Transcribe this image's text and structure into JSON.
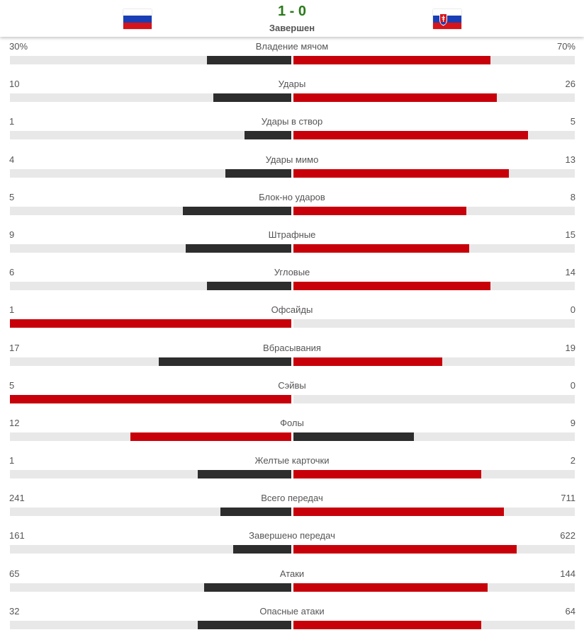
{
  "match": {
    "score": "1 - 0",
    "status": "Завершен",
    "home_flag": "russia-flag",
    "away_flag": "slovakia-flag"
  },
  "colors": {
    "leader": "#c8000a",
    "other": "#2d2d2d",
    "track": "#e8e8e8"
  },
  "stats": [
    {
      "label": "Владение мячом",
      "home": "30%",
      "away": "70%",
      "home_share": 0.3,
      "away_share": 0.7
    },
    {
      "label": "Удары",
      "home": "10",
      "away": "26",
      "home_share": 0.278,
      "away_share": 0.722
    },
    {
      "label": "Удары в створ",
      "home": "1",
      "away": "5",
      "home_share": 0.167,
      "away_share": 0.833
    },
    {
      "label": "Удары мимо",
      "home": "4",
      "away": "13",
      "home_share": 0.235,
      "away_share": 0.765
    },
    {
      "label": "Блок-но ударов",
      "home": "5",
      "away": "8",
      "home_share": 0.385,
      "away_share": 0.615
    },
    {
      "label": "Штрафные",
      "home": "9",
      "away": "15",
      "home_share": 0.375,
      "away_share": 0.625
    },
    {
      "label": "Угловые",
      "home": "6",
      "away": "14",
      "home_share": 0.3,
      "away_share": 0.7
    },
    {
      "label": "Офсайды",
      "home": "1",
      "away": "0",
      "home_share": 1.0,
      "away_share": 0.0
    },
    {
      "label": "Вбрасывания",
      "home": "17",
      "away": "19",
      "home_share": 0.472,
      "away_share": 0.528
    },
    {
      "label": "Сэйвы",
      "home": "5",
      "away": "0",
      "home_share": 1.0,
      "away_share": 0.0
    },
    {
      "label": "Фолы",
      "home": "12",
      "away": "9",
      "home_share": 0.571,
      "away_share": 0.429
    },
    {
      "label": "Желтые карточки",
      "home": "1",
      "away": "2",
      "home_share": 0.333,
      "away_share": 0.667
    },
    {
      "label": "Всего передач",
      "home": "241",
      "away": "711",
      "home_share": 0.253,
      "away_share": 0.747
    },
    {
      "label": "Завершено передач",
      "home": "161",
      "away": "622",
      "home_share": 0.206,
      "away_share": 0.794
    },
    {
      "label": "Атаки",
      "home": "65",
      "away": "144",
      "home_share": 0.311,
      "away_share": 0.689
    },
    {
      "label": "Опасные атаки",
      "home": "32",
      "away": "64",
      "home_share": 0.333,
      "away_share": 0.667
    }
  ]
}
